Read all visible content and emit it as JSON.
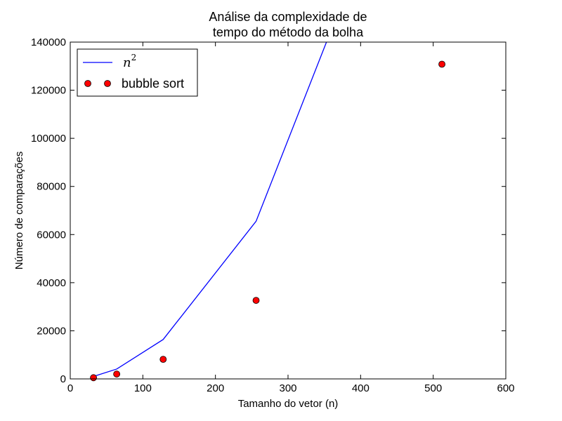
{
  "chart_data": {
    "type": "line",
    "title_line1": "Análise da complexidade de",
    "title_line2": "tempo do método da bolha",
    "xlabel": "Tamanho do vetor (n)",
    "ylabel": "Número de comparações",
    "xlim": [
      0,
      600
    ],
    "ylim": [
      0,
      140000
    ],
    "xticks": [
      0,
      100,
      200,
      300,
      400,
      500,
      600
    ],
    "yticks": [
      0,
      20000,
      40000,
      60000,
      80000,
      100000,
      120000,
      140000
    ],
    "grid": false,
    "legend_position": "top-left",
    "series": [
      {
        "name": "n",
        "name_superscript": "2",
        "kind": "line",
        "color": "#0000ff",
        "x": [
          32,
          64,
          128,
          256,
          512
        ],
        "y": [
          1024,
          4096,
          16384,
          65536,
          262144
        ]
      },
      {
        "name": "bubble sort",
        "kind": "markers",
        "color": "#ff0000",
        "x": [
          32,
          64,
          128,
          256,
          512
        ],
        "y": [
          496,
          2016,
          8128,
          32640,
          130816
        ]
      }
    ]
  }
}
